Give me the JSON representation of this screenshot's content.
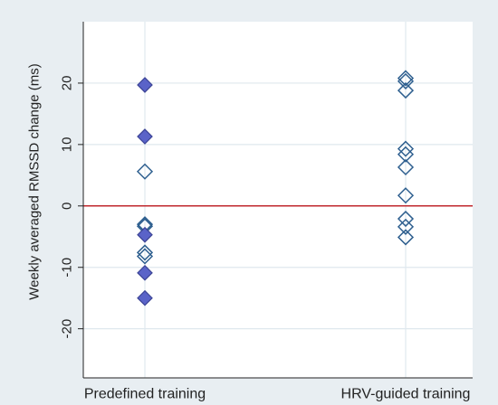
{
  "chart_data": {
    "type": "scatter",
    "title": "",
    "xlabel": "",
    "ylabel": "Weekly averaged RMSSD change (ms)",
    "categories": [
      "Predefined training",
      "HRV-guided training"
    ],
    "ylim": [
      -28,
      30
    ],
    "yticks": [
      20,
      10,
      0,
      -10,
      -20
    ],
    "reference_line": {
      "y": 0,
      "color": "#c0272d"
    },
    "grid": true,
    "series": [
      {
        "category": "Predefined training",
        "points": [
          {
            "y": 19.7,
            "style": "filled"
          },
          {
            "y": 11.3,
            "style": "filled"
          },
          {
            "y": 5.6,
            "style": "open"
          },
          {
            "y": -3.0,
            "style": "open"
          },
          {
            "y": -3.3,
            "style": "open"
          },
          {
            "y": -4.7,
            "style": "filled"
          },
          {
            "y": -7.6,
            "style": "open"
          },
          {
            "y": -8.2,
            "style": "open"
          },
          {
            "y": -10.9,
            "style": "filled"
          },
          {
            "y": -15.0,
            "style": "filled"
          }
        ]
      },
      {
        "category": "HRV-guided training",
        "points": [
          {
            "y": 20.8,
            "style": "open"
          },
          {
            "y": 20.3,
            "style": "open"
          },
          {
            "y": 18.8,
            "style": "open"
          },
          {
            "y": 9.3,
            "style": "open"
          },
          {
            "y": 8.4,
            "style": "open"
          },
          {
            "y": 6.3,
            "style": "open"
          },
          {
            "y": 1.7,
            "style": "open"
          },
          {
            "y": -2.1,
            "style": "open"
          },
          {
            "y": -3.4,
            "style": "open"
          },
          {
            "y": -5.1,
            "style": "open"
          }
        ]
      }
    ],
    "colors": {
      "filled_fill": "#5a63c8",
      "filled_stroke": "#3c4496",
      "open_stroke": "#2e5f8f",
      "background": "#e8eef2",
      "plot_bg": "#ffffff",
      "grid": "#dfe8ee"
    }
  }
}
